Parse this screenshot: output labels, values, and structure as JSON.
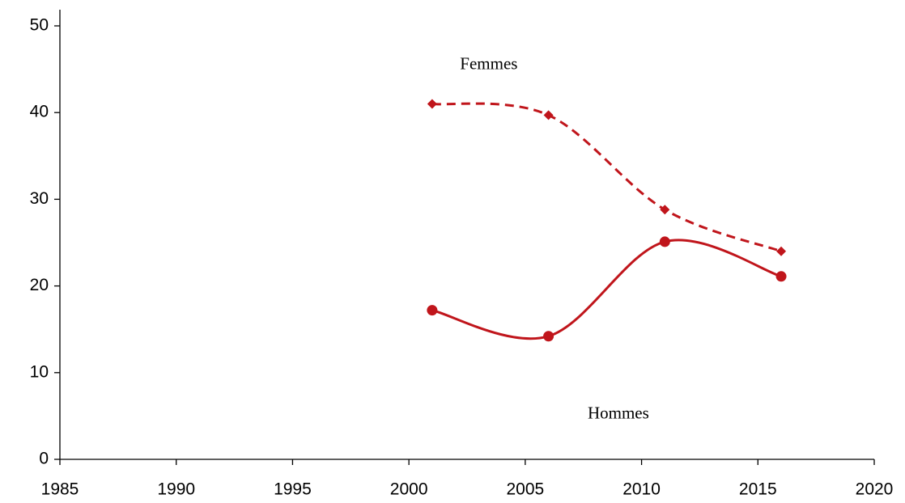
{
  "chart_data": {
    "type": "line",
    "xlim": [
      1985,
      2020
    ],
    "xticks": [
      1985,
      1990,
      1995,
      2000,
      2005,
      2010,
      2015,
      2020
    ],
    "ylim": [
      0,
      50
    ],
    "yticks": [
      0,
      10,
      20,
      30,
      40,
      50
    ],
    "x": [
      2001,
      2006,
      2011,
      2016
    ],
    "series": [
      {
        "name": "Femmes",
        "color": "#c0151b",
        "dash": true,
        "marker": "diamond",
        "values": [
          41,
          39.7,
          28.8,
          24
        ]
      },
      {
        "name": "Hommes",
        "color": "#c0151b",
        "dash": false,
        "marker": "circle",
        "values": [
          17.2,
          14.2,
          25.1,
          21.1
        ]
      }
    ]
  }
}
